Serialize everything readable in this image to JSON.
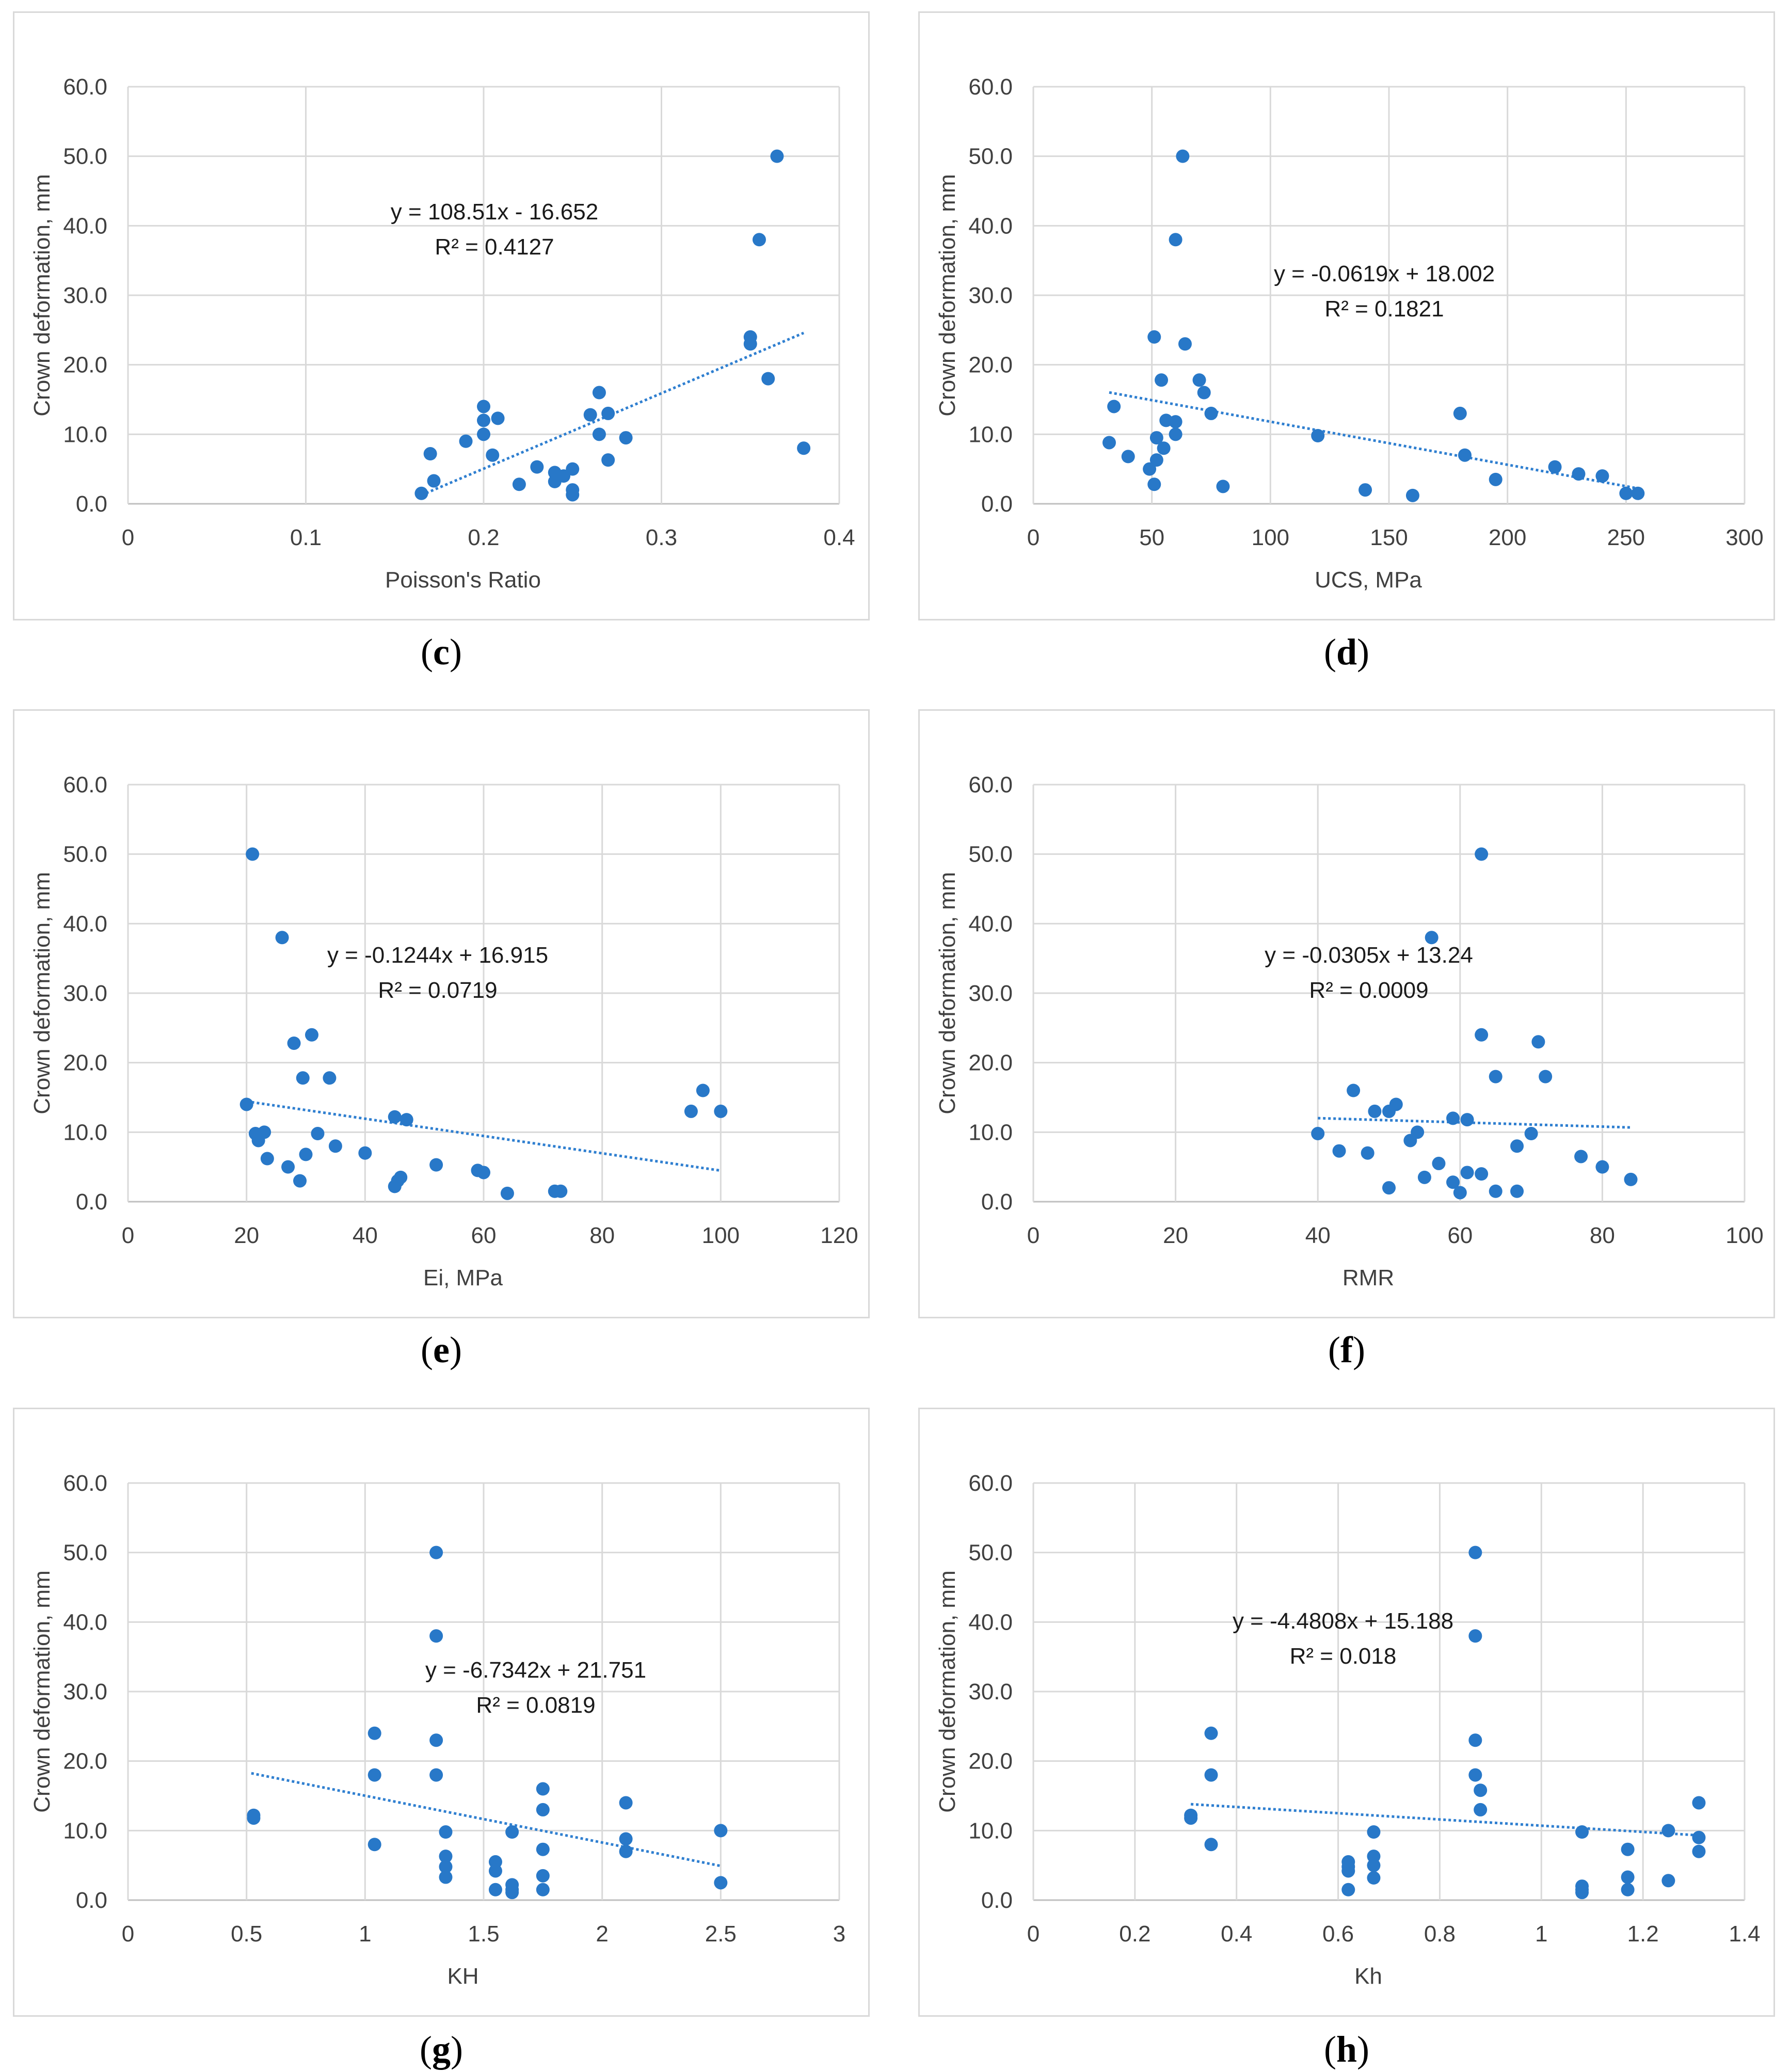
{
  "theme": {
    "marker_color": "#2878c8",
    "grid_color": "#d9d9d9",
    "trend_color": "#2f7fd0"
  },
  "chart_data": [
    {
      "id": "c",
      "type": "scatter",
      "caption_letter": "c",
      "xlabel": "Poisson's Ratio",
      "ylabel": "Crown deformation, mm",
      "xlim": [
        0,
        0.4
      ],
      "ylim": [
        0,
        60
      ],
      "xticks": [
        0,
        0.1,
        0.2,
        0.3,
        0.4
      ],
      "xtick_labels": [
        "0",
        "0.1",
        "0.2",
        "0.3",
        "0.4"
      ],
      "yticks": [
        0,
        10,
        20,
        30,
        40,
        50,
        60
      ],
      "ytick_labels": [
        "0.0",
        "10.0",
        "20.0",
        "30.0",
        "40.0",
        "50.0",
        "60.0"
      ],
      "equation": "y = 108.51x - 16.652",
      "r2": "R² = 0.4127",
      "trendline": {
        "slope": 108.51,
        "intercept": -16.652,
        "x_range": [
          0.165,
          0.38
        ]
      },
      "points": [
        [
          0.165,
          1.5
        ],
        [
          0.17,
          7.2
        ],
        [
          0.172,
          3.3
        ],
        [
          0.19,
          9
        ],
        [
          0.2,
          14
        ],
        [
          0.2,
          12
        ],
        [
          0.2,
          10
        ],
        [
          0.205,
          7
        ],
        [
          0.208,
          12.3
        ],
        [
          0.22,
          2.8
        ],
        [
          0.23,
          5.3
        ],
        [
          0.24,
          4.5
        ],
        [
          0.24,
          3.2
        ],
        [
          0.245,
          4
        ],
        [
          0.25,
          5
        ],
        [
          0.25,
          2
        ],
        [
          0.25,
          1.3
        ],
        [
          0.26,
          12.8
        ],
        [
          0.265,
          16
        ],
        [
          0.265,
          10
        ],
        [
          0.27,
          13
        ],
        [
          0.27,
          6.3
        ],
        [
          0.28,
          9.5
        ],
        [
          0.35,
          24
        ],
        [
          0.35,
          23
        ],
        [
          0.355,
          38
        ],
        [
          0.36,
          18
        ],
        [
          0.365,
          50
        ],
        [
          0.38,
          8
        ]
      ]
    },
    {
      "id": "d",
      "type": "scatter",
      "caption_letter": "d",
      "xlabel": "UCS, MPa",
      "ylabel": "Crown deformation, mm",
      "xlim": [
        0,
        300
      ],
      "ylim": [
        0,
        60
      ],
      "xticks": [
        0,
        50,
        100,
        150,
        200,
        250,
        300
      ],
      "xtick_labels": [
        "0",
        "50",
        "100",
        "150",
        "200",
        "250",
        "300"
      ],
      "yticks": [
        0,
        10,
        20,
        30,
        40,
        50,
        60
      ],
      "ytick_labels": [
        "0.0",
        "10.0",
        "20.0",
        "30.0",
        "40.0",
        "50.0",
        "60.0"
      ],
      "equation": "y = -0.0619x + 18.002",
      "r2": "R² = 0.1821",
      "trendline": {
        "slope": -0.0619,
        "intercept": 18.002,
        "x_range": [
          32,
          256
        ]
      },
      "points": [
        [
          32,
          8.8
        ],
        [
          34,
          14
        ],
        [
          40,
          6.8
        ],
        [
          49,
          5
        ],
        [
          51,
          24
        ],
        [
          51,
          2.8
        ],
        [
          52,
          9.5
        ],
        [
          52,
          6.3
        ],
        [
          54,
          17.8
        ],
        [
          55,
          8
        ],
        [
          56,
          12
        ],
        [
          60,
          38
        ],
        [
          60,
          11.8
        ],
        [
          60,
          10
        ],
        [
          63,
          50
        ],
        [
          64,
          23
        ],
        [
          70,
          17.8
        ],
        [
          72,
          16
        ],
        [
          75,
          13
        ],
        [
          80,
          2.5
        ],
        [
          120,
          9.8
        ],
        [
          140,
          2
        ],
        [
          160,
          1.2
        ],
        [
          180,
          13
        ],
        [
          182,
          7
        ],
        [
          195,
          3.5
        ],
        [
          220,
          5.3
        ],
        [
          230,
          4.3
        ],
        [
          240,
          4
        ],
        [
          250,
          1.5
        ],
        [
          255,
          1.5
        ]
      ]
    },
    {
      "id": "e",
      "type": "scatter",
      "caption_letter": "e",
      "xlabel": "Ei, MPa",
      "ylabel": "Crown deformation, mm",
      "xlim": [
        0,
        120
      ],
      "ylim": [
        0,
        60
      ],
      "xticks": [
        0,
        20,
        40,
        60,
        80,
        100,
        120
      ],
      "xtick_labels": [
        "0",
        "20",
        "40",
        "60",
        "80",
        "100",
        "120"
      ],
      "yticks": [
        0,
        10,
        20,
        30,
        40,
        50,
        60
      ],
      "ytick_labels": [
        "0.0",
        "10.0",
        "20.0",
        "30.0",
        "40.0",
        "50.0",
        "60.0"
      ],
      "equation": "y = -0.1244x + 16.915",
      "r2": "R² = 0.0719",
      "trendline": {
        "slope": -0.1244,
        "intercept": 16.915,
        "x_range": [
          20,
          100
        ]
      },
      "points": [
        [
          20,
          14
        ],
        [
          21,
          50
        ],
        [
          21.5,
          9.8
        ],
        [
          22,
          8.8
        ],
        [
          23,
          10
        ],
        [
          23.5,
          6.2
        ],
        [
          26,
          38
        ],
        [
          27,
          5
        ],
        [
          28,
          22.8
        ],
        [
          29,
          3
        ],
        [
          29.5,
          17.8
        ],
        [
          30,
          6.8
        ],
        [
          31,
          24
        ],
        [
          32,
          9.8
        ],
        [
          34,
          17.8
        ],
        [
          35,
          8
        ],
        [
          40,
          7
        ],
        [
          45,
          12.2
        ],
        [
          45,
          2.2
        ],
        [
          45.5,
          3
        ],
        [
          46,
          3.5
        ],
        [
          47,
          11.8
        ],
        [
          52,
          5.3
        ],
        [
          59,
          4.5
        ],
        [
          60,
          4.2
        ],
        [
          64,
          1.2
        ],
        [
          72,
          1.5
        ],
        [
          73,
          1.5
        ],
        [
          95,
          13
        ],
        [
          97,
          16
        ],
        [
          100,
          13
        ]
      ]
    },
    {
      "id": "f",
      "type": "scatter",
      "caption_letter": "f",
      "xlabel": "RMR",
      "ylabel": "Crown deformation, mm",
      "xlim": [
        0,
        100
      ],
      "ylim": [
        0,
        60
      ],
      "xticks": [
        0,
        20,
        40,
        60,
        80,
        100
      ],
      "xtick_labels": [
        "0",
        "20",
        "40",
        "60",
        "80",
        "100"
      ],
      "yticks": [
        0,
        10,
        20,
        30,
        40,
        50,
        60
      ],
      "ytick_labels": [
        "0.0",
        "10.0",
        "20.0",
        "30.0",
        "40.0",
        "50.0",
        "60.0"
      ],
      "equation": "y = -0.0305x + 13.24",
      "r2": "R² = 0.0009",
      "trendline": {
        "slope": -0.0305,
        "intercept": 13.24,
        "x_range": [
          40,
          84
        ]
      },
      "points": [
        [
          40,
          9.8
        ],
        [
          43,
          7.3
        ],
        [
          45,
          16
        ],
        [
          47,
          7
        ],
        [
          48,
          13
        ],
        [
          50,
          13
        ],
        [
          50,
          2
        ],
        [
          51,
          14
        ],
        [
          53,
          8.8
        ],
        [
          54,
          10
        ],
        [
          55,
          3.5
        ],
        [
          56,
          38
        ],
        [
          57,
          5.5
        ],
        [
          59,
          12
        ],
        [
          59,
          2.8
        ],
        [
          60,
          1.3
        ],
        [
          61,
          11.8
        ],
        [
          61,
          4.2
        ],
        [
          63,
          50
        ],
        [
          63,
          24
        ],
        [
          63,
          4
        ],
        [
          65,
          18
        ],
        [
          65,
          1.5
        ],
        [
          68,
          8
        ],
        [
          68,
          1.5
        ],
        [
          70,
          9.8
        ],
        [
          71,
          23
        ],
        [
          72,
          18
        ],
        [
          77,
          6.5
        ],
        [
          80,
          5
        ],
        [
          84,
          3.2
        ]
      ]
    },
    {
      "id": "g",
      "type": "scatter",
      "caption_letter": "g",
      "xlabel": "KH",
      "ylabel": "Crown deformation, mm",
      "xlim": [
        0,
        3
      ],
      "ylim": [
        0,
        60
      ],
      "xticks": [
        0,
        0.5,
        1,
        1.5,
        2,
        2.5,
        3
      ],
      "xtick_labels": [
        "0",
        "0.5",
        "1",
        "1.5",
        "2",
        "2.5",
        "3"
      ],
      "yticks": [
        0,
        10,
        20,
        30,
        40,
        50,
        60
      ],
      "ytick_labels": [
        "0.0",
        "10.0",
        "20.0",
        "30.0",
        "40.0",
        "50.0",
        "60.0"
      ],
      "equation": "y = -6.7342x + 21.751",
      "r2": "R² = 0.0819",
      "trendline": {
        "slope": -6.7342,
        "intercept": 21.751,
        "x_range": [
          0.52,
          2.5
        ]
      },
      "points": [
        [
          0.53,
          12.2
        ],
        [
          0.53,
          11.8
        ],
        [
          1.04,
          24
        ],
        [
          1.04,
          18
        ],
        [
          1.04,
          8
        ],
        [
          1.3,
          50
        ],
        [
          1.3,
          38
        ],
        [
          1.3,
          23
        ],
        [
          1.3,
          18
        ],
        [
          1.34,
          9.8
        ],
        [
          1.34,
          6.3
        ],
        [
          1.34,
          4.8
        ],
        [
          1.34,
          3.3
        ],
        [
          1.55,
          5.5
        ],
        [
          1.55,
          4.2
        ],
        [
          1.55,
          1.5
        ],
        [
          1.62,
          9.8
        ],
        [
          1.62,
          2.2
        ],
        [
          1.62,
          1.5
        ],
        [
          1.62,
          1.1
        ],
        [
          1.75,
          16
        ],
        [
          1.75,
          13
        ],
        [
          1.75,
          7.3
        ],
        [
          1.75,
          3.5
        ],
        [
          1.75,
          1.5
        ],
        [
          2.1,
          14
        ],
        [
          2.1,
          8.8
        ],
        [
          2.1,
          7
        ],
        [
          2.5,
          10
        ],
        [
          2.5,
          2.5
        ]
      ]
    },
    {
      "id": "h",
      "type": "scatter",
      "caption_letter": "h",
      "xlabel": "Kh",
      "ylabel": "Crown deformation, mm",
      "xlim": [
        0,
        1.4
      ],
      "ylim": [
        0,
        60
      ],
      "xticks": [
        0,
        0.2,
        0.4,
        0.6,
        0.8,
        1,
        1.2,
        1.4
      ],
      "xtick_labels": [
        "0",
        "0.2",
        "0.4",
        "0.6",
        "0.8",
        "1",
        "1.2",
        "1.4"
      ],
      "yticks": [
        0,
        10,
        20,
        30,
        40,
        50,
        60
      ],
      "ytick_labels": [
        "0.0",
        "10.0",
        "20.0",
        "30.0",
        "40.0",
        "50.0",
        "60.0"
      ],
      "equation": "y = -4.4808x + 15.188",
      "r2": "R² = 0.018",
      "trendline": {
        "slope": -4.4808,
        "intercept": 15.188,
        "x_range": [
          0.31,
          1.31
        ]
      },
      "points": [
        [
          0.31,
          12.2
        ],
        [
          0.31,
          11.8
        ],
        [
          0.35,
          24
        ],
        [
          0.35,
          18
        ],
        [
          0.35,
          8
        ],
        [
          0.62,
          5.5
        ],
        [
          0.62,
          4.8
        ],
        [
          0.62,
          4.2
        ],
        [
          0.62,
          1.5
        ],
        [
          0.67,
          9.8
        ],
        [
          0.67,
          6.3
        ],
        [
          0.67,
          5
        ],
        [
          0.67,
          3.2
        ],
        [
          0.87,
          50
        ],
        [
          0.87,
          38
        ],
        [
          0.87,
          23
        ],
        [
          0.87,
          18
        ],
        [
          0.88,
          15.8
        ],
        [
          0.88,
          13
        ],
        [
          1.08,
          9.8
        ],
        [
          1.08,
          2
        ],
        [
          1.08,
          1.5
        ],
        [
          1.08,
          1.1
        ],
        [
          1.17,
          7.3
        ],
        [
          1.17,
          3.3
        ],
        [
          1.17,
          1.5
        ],
        [
          1.25,
          10
        ],
        [
          1.25,
          2.8
        ],
        [
          1.31,
          14
        ],
        [
          1.31,
          9
        ],
        [
          1.31,
          7
        ]
      ]
    }
  ]
}
